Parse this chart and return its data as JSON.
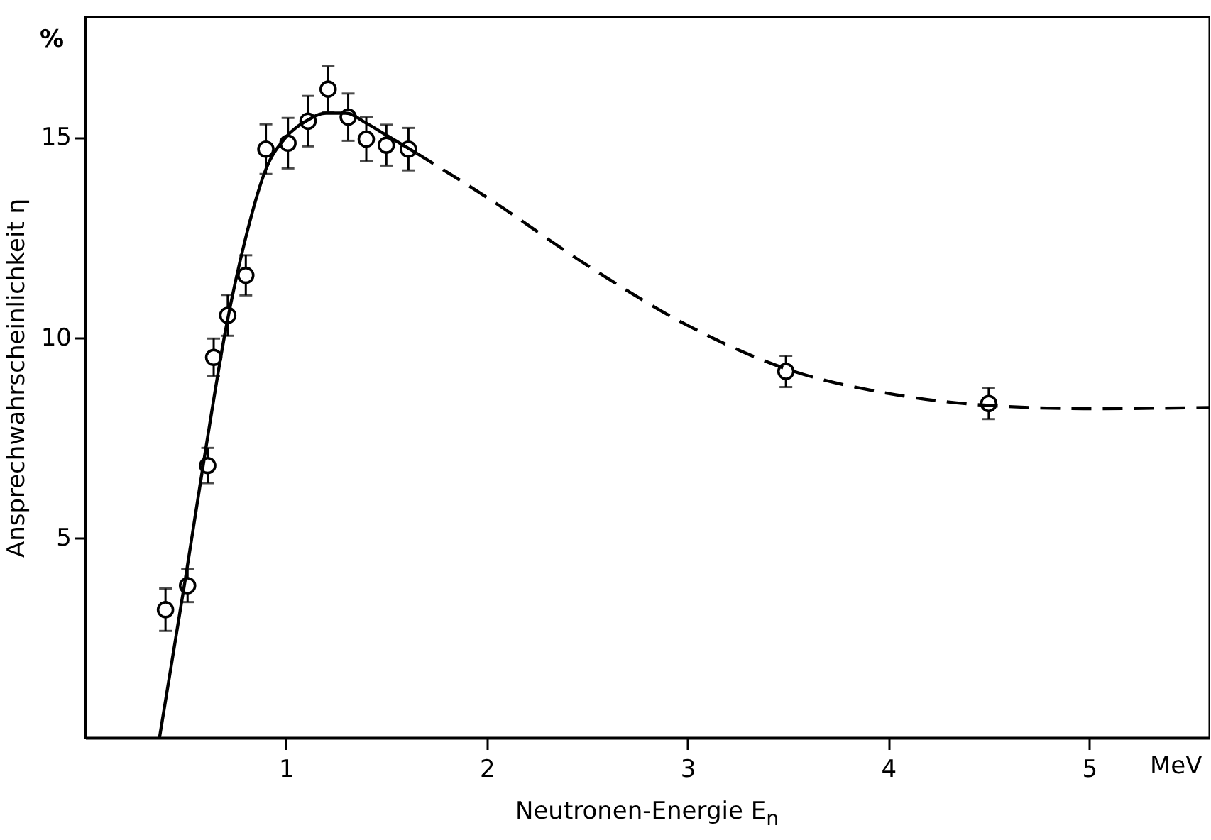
{
  "chart_data": {
    "type": "scatter",
    "xlabel": "Neutronen-Energie E$_{n}$",
    "ylabel": "Ansprechwahrscheinlichkeit η",
    "annotations": [
      "%",
      "MeV"
    ],
    "xlim": [
      0,
      5.6
    ],
    "xticks": [
      1,
      2,
      3,
      4,
      5
    ],
    "ylim": [
      0,
      18
    ],
    "yticks": [
      5,
      10,
      15
    ],
    "grid": false,
    "series": [
      {
        "type": "scatter",
        "color": "#000000",
        "marker": "circle",
        "x": [
          0.4,
          0.51,
          0.61,
          0.64,
          0.71,
          0.8,
          0.9,
          1.01,
          1.11,
          1.21,
          1.31,
          1.4,
          1.5,
          1.61,
          3.49,
          4.5
        ],
        "values": [
          3.2,
          3.8,
          6.8,
          9.5,
          10.55,
          11.55,
          14.7,
          14.85,
          15.4,
          16.2,
          15.5,
          14.95,
          14.8,
          14.7,
          9.15,
          8.35
        ],
        "errors": [
          0.53,
          0.41,
          0.44,
          0.47,
          0.51,
          0.5,
          0.62,
          0.63,
          0.63,
          0.57,
          0.59,
          0.55,
          0.51,
          0.53,
          0.39,
          0.39
        ]
      },
      {
        "type": "line",
        "color": "#000000",
        "line_style": "solid",
        "marker": "none",
        "x": [
          0.37,
          0.5,
          0.6,
          0.7,
          0.8,
          0.9,
          1.0,
          1.1,
          1.2,
          1.3,
          1.4,
          1.5,
          1.65
        ],
        "values": [
          0,
          4.0,
          7.2,
          10.2,
          12.5,
          14.2,
          15.0,
          15.4,
          15.6,
          15.6,
          15.35,
          15.05,
          14.6
        ]
      },
      {
        "type": "line",
        "color": "#000000",
        "line_style": "dashed",
        "marker": "none",
        "x": [
          1.65,
          2.0,
          2.5,
          3.0,
          3.5,
          4.0,
          4.5,
          5.0,
          5.6
        ],
        "values": [
          14.6,
          13.5,
          11.8,
          10.3,
          9.2,
          8.6,
          8.3,
          8.22,
          8.25
        ]
      }
    ]
  }
}
